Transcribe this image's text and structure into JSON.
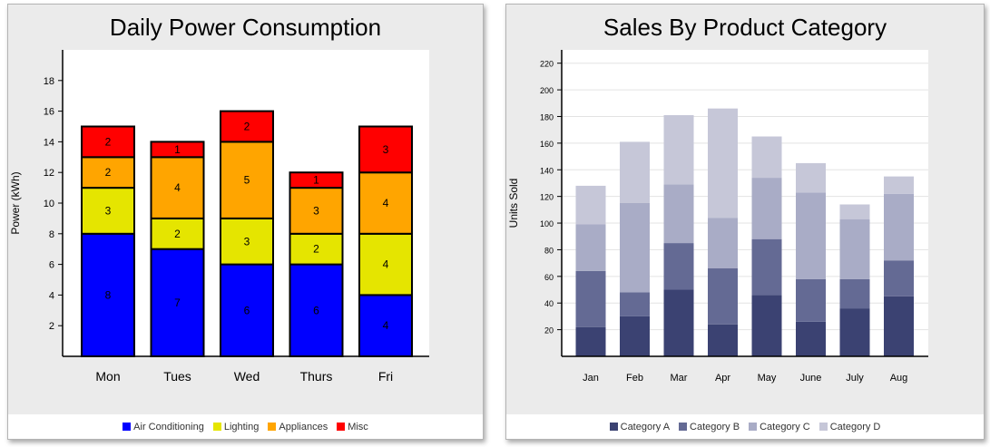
{
  "charts": [
    {
      "title": "Daily Power Consumption",
      "chart_data": {
        "type": "bar",
        "stacked": true,
        "categories": [
          "Mon",
          "Tues",
          "Wed",
          "Thurs",
          "Fri"
        ],
        "series": [
          {
            "name": "Air Conditioning",
            "color": "#0000ff",
            "values": [
              8,
              7,
              6,
              6,
              4
            ]
          },
          {
            "name": "Lighting",
            "color": "#e5e500",
            "values": [
              3,
              2,
              3,
              2,
              4
            ]
          },
          {
            "name": "Appliances",
            "color": "#ffa500",
            "values": [
              2,
              4,
              5,
              3,
              4
            ]
          },
          {
            "name": "Misc",
            "color": "#ff0000",
            "values": [
              2,
              1,
              2,
              1,
              3
            ]
          }
        ],
        "xlabel": "",
        "ylabel": "Power (kWh)",
        "ylim": [
          0,
          20
        ],
        "yticks": [
          2,
          4,
          6,
          8,
          10,
          12,
          14,
          16,
          18
        ],
        "data_labels": true,
        "legend_position": "bottom",
        "grid": false
      }
    },
    {
      "title": "Sales By Product Category",
      "chart_data": {
        "type": "bar",
        "stacked": true,
        "categories": [
          "Jan",
          "Feb",
          "Mar",
          "Apr",
          "May",
          "June",
          "July",
          "Aug"
        ],
        "series": [
          {
            "name": "Category A",
            "color": "#3b4272",
            "values": [
              22,
              30,
              50,
              24,
              46,
              26,
              36,
              45
            ]
          },
          {
            "name": "Category B",
            "color": "#646a94",
            "values": [
              42,
              18,
              35,
              42,
              42,
              32,
              22,
              27
            ]
          },
          {
            "name": "Category C",
            "color": "#a9acc6",
            "values": [
              35,
              67,
              44,
              38,
              46,
              65,
              45,
              50
            ]
          },
          {
            "name": "Category D",
            "color": "#c6c7d8",
            "values": [
              29,
              46,
              52,
              82,
              31,
              22,
              11,
              13
            ]
          }
        ],
        "xlabel": "",
        "ylabel": "Units Sold",
        "ylim": [
          0,
          230
        ],
        "yticks": [
          20,
          40,
          60,
          80,
          100,
          120,
          140,
          160,
          180,
          200,
          220
        ],
        "data_labels": false,
        "legend_position": "bottom",
        "grid": true
      }
    }
  ]
}
